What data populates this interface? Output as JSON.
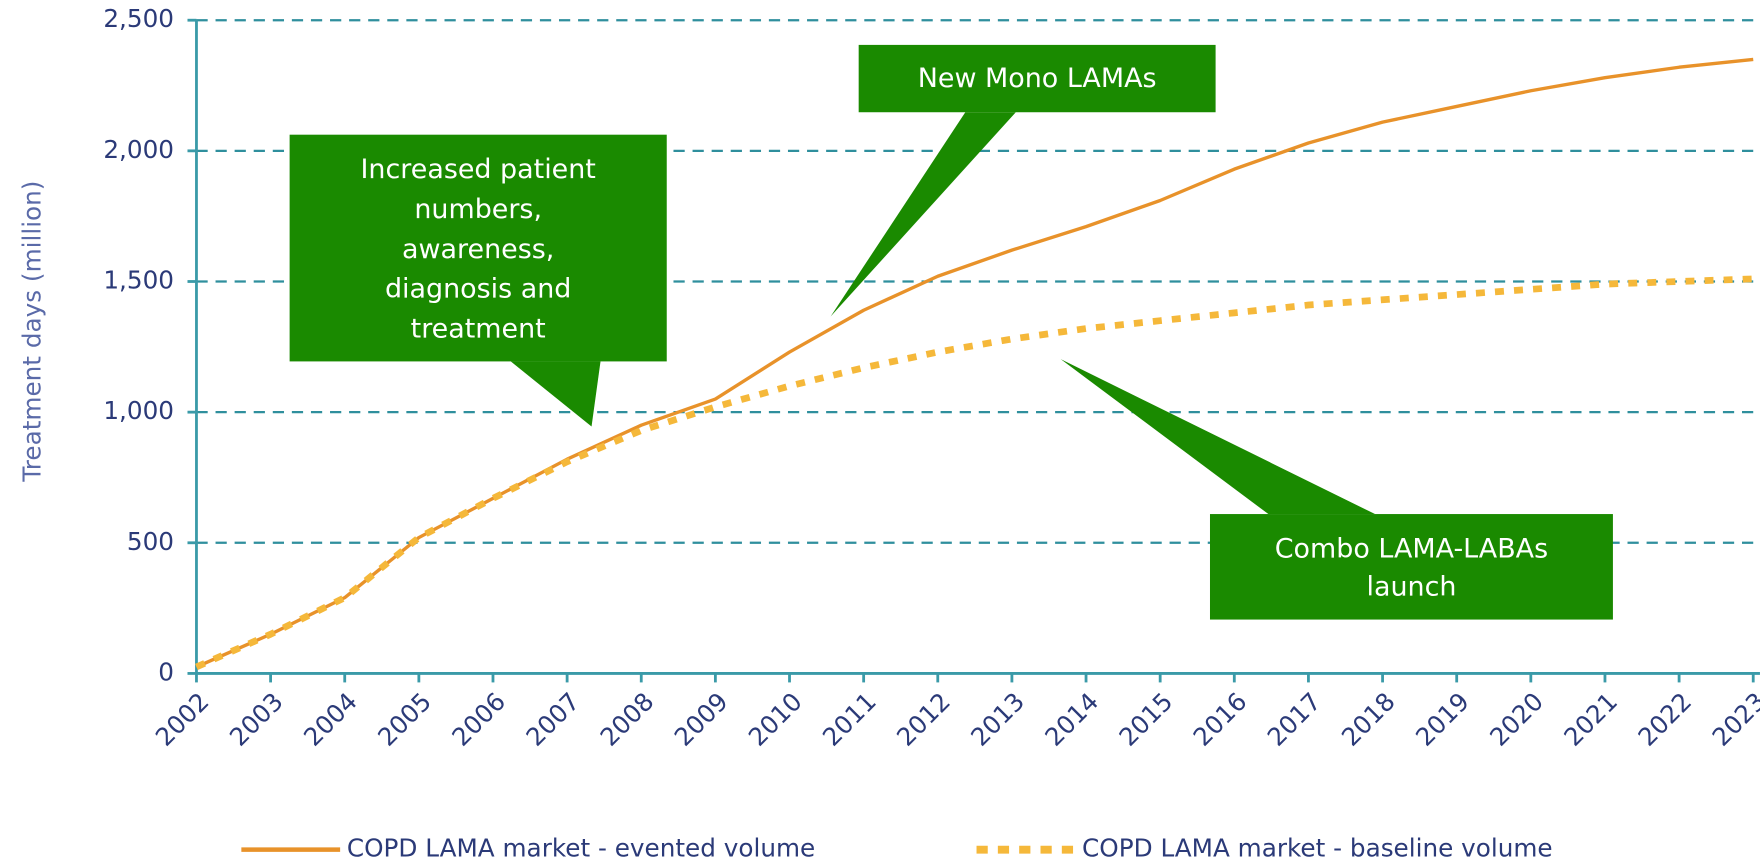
{
  "chart_data": {
    "type": "line",
    "y_label": "Treatment days (million)",
    "categories": [
      "2002",
      "2003",
      "2004",
      "2005",
      "2006",
      "2007",
      "2008",
      "2009",
      "2010",
      "2011",
      "2012",
      "2013",
      "2014",
      "2015",
      "2016",
      "2017",
      "2018",
      "2019",
      "2020",
      "2021",
      "2022",
      "2023"
    ],
    "series": [
      {
        "name": "COPD LAMA market - evented volume",
        "color": "#e8922a",
        "style": "solid",
        "values": [
          25,
          150,
          290,
          520,
          670,
          820,
          950,
          1050,
          1230,
          1390,
          1520,
          1620,
          1710,
          1810,
          1930,
          2030,
          2110,
          2170,
          2230,
          2280,
          2320,
          2350
        ]
      },
      {
        "name": "COPD LAMA market - baseline volume",
        "color": "#f5b83a",
        "style": "dotted",
        "values": [
          25,
          150,
          290,
          520,
          670,
          810,
          930,
          1020,
          1100,
          1170,
          1230,
          1280,
          1320,
          1350,
          1380,
          1410,
          1430,
          1450,
          1470,
          1490,
          1500,
          1510
        ]
      }
    ],
    "ylim": [
      0,
      2500
    ],
    "yticks": [
      0,
      500,
      {
        "value": 1000,
        "label": "1,000"
      },
      {
        "value": 1500,
        "label": "1,500"
      },
      {
        "value": 2000,
        "label": "2,000"
      },
      {
        "value": 2500,
        "label": "2,500"
      }
    ],
    "grid": true,
    "legend": "bottom",
    "annotations": [
      {
        "lines": [
          "Increased patient",
          "numbers,",
          "awareness,",
          "diagnosis and",
          "treatment"
        ],
        "color": "#1a8a00"
      },
      {
        "lines": [
          "New Mono LAMAs"
        ],
        "color": "#1a8a00"
      },
      {
        "lines": [
          "Combo LAMA-LABAs",
          "launch"
        ],
        "color": "#1a8a00"
      }
    ]
  }
}
